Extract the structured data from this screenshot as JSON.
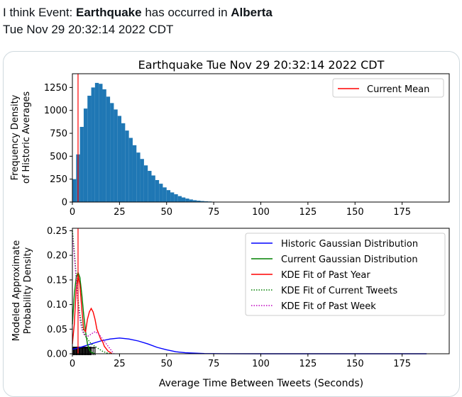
{
  "tweet": {
    "prefix": "I think Event: ",
    "event": "Earthquake",
    "middle": " has occurred in ",
    "location": "Alberta",
    "timestamp": "Tue Nov 29 20:32:14 2022 CDT"
  },
  "colors": {
    "histogram": "#1f77b4",
    "current_mean": "#ff0000",
    "historic_gaussian": "#0000ff",
    "current_gaussian": "#008000",
    "kde_past_year": "#ff0000",
    "kde_current": "#008000",
    "kde_past_week": "#bf00bf"
  },
  "chart_data": [
    {
      "type": "bar",
      "title": "Earthquake Tue Nov 29 20:32:14 2022 CDT",
      "xlabel": "",
      "ylabel_line1": "Frequency Density",
      "ylabel_line2": "of Historic Averages",
      "xlim": [
        0,
        200
      ],
      "ylim": [
        0,
        1400
      ],
      "x_ticks": [
        0,
        25,
        50,
        75,
        100,
        125,
        150,
        175
      ],
      "y_ticks": [
        0,
        250,
        500,
        750,
        1000,
        1250
      ],
      "histogram": {
        "bin_centers": [
          1,
          3,
          5,
          7,
          9,
          11,
          13,
          15,
          17,
          19,
          21,
          23,
          25,
          27,
          29,
          31,
          33,
          35,
          37,
          39,
          41,
          43,
          45,
          47,
          49,
          51,
          53,
          55,
          57,
          59,
          61,
          63,
          65,
          67,
          69,
          71,
          73,
          75,
          77,
          79
        ],
        "values": [
          250,
          520,
          820,
          1020,
          1160,
          1250,
          1300,
          1290,
          1230,
          1150,
          1080,
          1010,
          940,
          860,
          780,
          700,
          620,
          540,
          470,
          400,
          340,
          290,
          240,
          200,
          160,
          130,
          105,
          85,
          65,
          50,
          38,
          28,
          20,
          15,
          11,
          8,
          6,
          4,
          3,
          2
        ]
      },
      "current_mean": 3,
      "legend": [
        "Current Mean"
      ],
      "legend_position": "top-right"
    },
    {
      "type": "line",
      "xlabel": "Average Time Between Tweets (Seconds)",
      "ylabel_line1": "Modeled Approximate",
      "ylabel_line2": "Probability Density",
      "xlim": [
        0,
        200
      ],
      "ylim": [
        0,
        0.255
      ],
      "x_ticks": [
        0,
        25,
        50,
        75,
        100,
        125,
        150,
        175
      ],
      "y_ticks": [
        "0.00",
        "0.05",
        "0.10",
        "0.15",
        "0.20",
        "0.25"
      ],
      "current_mean": 3,
      "legend_position": "top-right",
      "series": [
        {
          "name": "Historic Gaussian Distribution",
          "style": "solid",
          "color": "#0000ff",
          "x": [
            0,
            5,
            10,
            15,
            20,
            25,
            30,
            35,
            40,
            45,
            50,
            55,
            60,
            70,
            80,
            100,
            150,
            188
          ],
          "y": [
            0.009,
            0.014,
            0.02,
            0.026,
            0.03,
            0.032,
            0.03,
            0.026,
            0.02,
            0.013,
            0.008,
            0.004,
            0.002,
            0.0005,
            0.0001,
            0.0,
            0.0,
            0.0
          ]
        },
        {
          "name": "Current Gaussian Distribution",
          "style": "solid",
          "color": "#008000",
          "x": [
            0,
            1,
            2,
            3,
            4,
            5,
            6,
            7,
            8,
            9,
            10,
            12
          ],
          "y": [
            0.06,
            0.12,
            0.155,
            0.165,
            0.155,
            0.12,
            0.08,
            0.045,
            0.02,
            0.008,
            0.003,
            0.0
          ]
        },
        {
          "name": "KDE Fit of Past Year",
          "style": "solid",
          "color": "#ff0000",
          "x": [
            0,
            1,
            2,
            3,
            4,
            5,
            6,
            7,
            8,
            9,
            10,
            11,
            12,
            13,
            14,
            15,
            16,
            17,
            18,
            19,
            20,
            21
          ],
          "y": [
            0.02,
            0.06,
            0.13,
            0.16,
            0.14,
            0.09,
            0.05,
            0.045,
            0.07,
            0.085,
            0.092,
            0.085,
            0.07,
            0.05,
            0.04,
            0.03,
            0.025,
            0.015,
            0.01,
            0.005,
            0.003,
            0.0
          ]
        },
        {
          "name": "KDE Fit of Current Tweets",
          "style": "dotted",
          "color": "#008000",
          "x": [
            0,
            1,
            2,
            3,
            4,
            5,
            6,
            7,
            8,
            9,
            10,
            12,
            14,
            16,
            18,
            20
          ],
          "y": [
            0.25,
            0.21,
            0.16,
            0.11,
            0.08,
            0.06,
            0.045,
            0.035,
            0.03,
            0.025,
            0.02,
            0.015,
            0.01,
            0.005,
            0.002,
            0.0
          ]
        },
        {
          "name": "KDE Fit of Past Week",
          "style": "dotted",
          "color": "#bf00bf",
          "x": [
            0,
            1,
            2,
            3,
            4,
            5,
            6,
            8,
            10,
            12,
            14,
            16,
            18,
            20,
            22
          ],
          "y": [
            0.24,
            0.2,
            0.15,
            0.1,
            0.07,
            0.05,
            0.04,
            0.035,
            0.04,
            0.045,
            0.04,
            0.03,
            0.02,
            0.01,
            0.0
          ]
        }
      ],
      "rug_points": [
        0.5,
        1,
        1.5,
        2,
        2.5,
        3,
        3.5,
        4,
        4.5,
        5,
        5.5,
        6,
        6.5,
        7,
        7.5,
        8,
        8.5,
        9,
        9.5,
        10,
        11,
        12
      ]
    }
  ]
}
